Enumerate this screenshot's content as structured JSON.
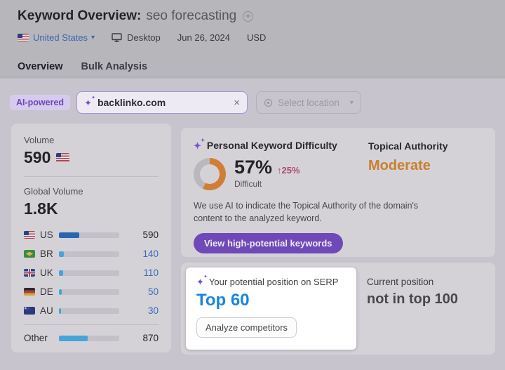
{
  "header": {
    "title": "Keyword Overview:",
    "keyword": "seo forecasting"
  },
  "subheader": {
    "location": "United States",
    "device": "Desktop",
    "date": "Jun 26, 2024",
    "currency": "USD"
  },
  "tabs": [
    {
      "label": "Overview",
      "active": true
    },
    {
      "label": "Bulk Analysis",
      "active": false
    }
  ],
  "search": {
    "badge": "AI-powered",
    "domain_value": "backlinko.com",
    "location_placeholder": "Select location"
  },
  "volume_panel": {
    "volume_label": "Volume",
    "volume_value": "590",
    "global_label": "Global Volume",
    "global_value": "1.8K",
    "countries": [
      {
        "code": "US",
        "value": "590",
        "bar_pct": 34
      },
      {
        "code": "BR",
        "value": "140",
        "bar_pct": 8
      },
      {
        "code": "UK",
        "value": "110",
        "bar_pct": 7
      },
      {
        "code": "DE",
        "value": "50",
        "bar_pct": 5
      },
      {
        "code": "AU",
        "value": "30",
        "bar_pct": 4
      }
    ],
    "other": {
      "label": "Other",
      "value": "870",
      "bar_pct": 48
    }
  },
  "difficulty_panel": {
    "title": "Personal Keyword Difficulty",
    "percent": "57%",
    "percent_value": 57,
    "change": "↑25%",
    "level": "Difficult",
    "topical_authority_label": "Topical Authority",
    "topical_authority_value": "Moderate",
    "description": "We use AI to indicate the Topical Authority of the domain's content to the analyzed keyword.",
    "cta": "View high-potential keywords"
  },
  "serp_panel": {
    "potential_label": "Your potential position on SERP",
    "potential_value": "Top 60",
    "analyze_button": "Analyze competitors",
    "current_label": "Current position",
    "current_value": "not in top 100"
  },
  "icons": {
    "sparkle": "✦",
    "plus": "+",
    "close": "×",
    "chevron_down": "▾"
  },
  "colors": {
    "donut_fill": "#cf7f35",
    "donut_track": "#b9b8bd",
    "accent_purple": "#7049b8",
    "topical_orange": "#c9802f",
    "potential_blue": "#1a85dd",
    "bar_dark_blue": "#2a66b0",
    "bar_light_blue": "#45a5da"
  }
}
